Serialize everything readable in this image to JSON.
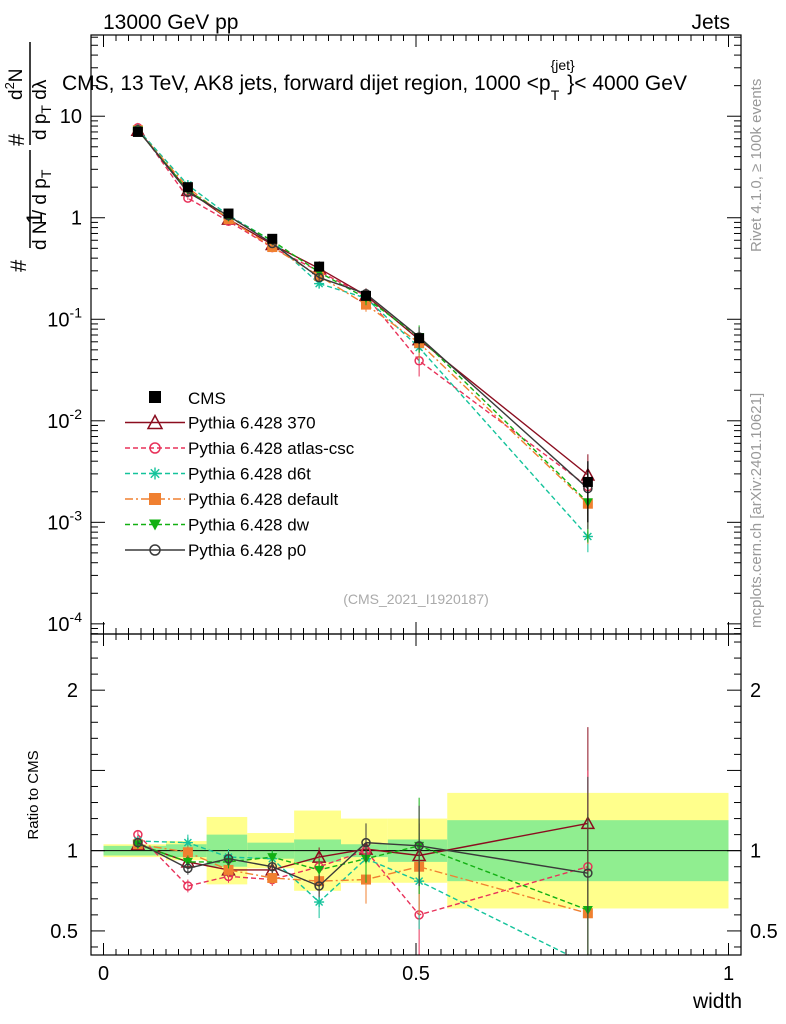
{
  "header": {
    "left": "13000 GeV pp",
    "right": "Jets"
  },
  "side": {
    "rivet": "Rivet 4.1.0, ≥ 100k events",
    "mcplots": "mcplots.cern.ch [arXiv:2401.10621]"
  },
  "chart_data": {
    "type": "line",
    "title": "CMS, 13 TeV, AK8 jets, forward dijet region, 1000 < p_T^{jet} < 4000 GeV",
    "title_parts": {
      "main": "CMS, 13 TeV, AK8 jets, forward dijet region, 1000 <p",
      "sup": "{jet}",
      "sub": "T",
      "tail": "}< 4000 GeV"
    },
    "ylabel_upper": "1/N dN/dp_T d²N/dp_T dλ",
    "ylabel_parts": {
      "frac1_num": "1",
      "frac1_den": "d N / d p",
      "frac1_den_sub": "T",
      "frac2_num": "d",
      "frac2_num_sup": "2",
      "frac2_num_tail": "N",
      "frac2_den": "d p",
      "frac2_den_sub": "T",
      "frac2_den_tail": " dλ",
      "hash": "#"
    },
    "ylabel_lower": "Ratio to CMS",
    "xlabel": "width",
    "analysis_id": "(CMS_2021_I1920187)",
    "xlim": [
      -0.02,
      1.02
    ],
    "ylim_upper_log": [
      -4.1,
      1.8
    ],
    "ylim_lower": [
      0.35,
      2.35
    ],
    "x_ticks": [
      0,
      0.5,
      1
    ],
    "x_tick_labels": [
      "0",
      "0.5",
      "1"
    ],
    "y_upper_ticks": [
      {
        "base": "10",
        "exp": "-4",
        "v": 0.0001
      },
      {
        "base": "10",
        "exp": "-3",
        "v": 0.001
      },
      {
        "base": "10",
        "exp": "-2",
        "v": 0.01
      },
      {
        "base": "10",
        "exp": "-1",
        "v": 0.1
      },
      {
        "base": "1",
        "exp": "",
        "v": 1
      },
      {
        "base": "10",
        "exp": "",
        "v": 10
      }
    ],
    "y_lower_ticks": [
      0.5,
      1,
      2
    ],
    "y_lower_tick_labels": [
      "0.5",
      "1",
      "2"
    ],
    "bin_edges": [
      0,
      0.1,
      0.165,
      0.23,
      0.305,
      0.38,
      0.455,
      0.55,
      1.0
    ],
    "x": [
      0.055,
      0.135,
      0.2,
      0.27,
      0.345,
      0.42,
      0.505,
      0.775
    ],
    "data": {
      "name": "CMS",
      "values": [
        7.0,
        2.0,
        1.1,
        0.62,
        0.33,
        0.17,
        0.065,
        0.0025
      ],
      "err_frac": [
        0.05,
        0.05,
        0.08,
        0.08,
        0.1,
        0.1,
        0.12,
        0.6
      ]
    },
    "bands": {
      "green": [
        0.03,
        0.04,
        0.1,
        0.05,
        0.07,
        0.04,
        0.07,
        0.19
      ],
      "yellow": [
        0.04,
        0.06,
        0.21,
        0.11,
        0.25,
        0.2,
        0.2,
        0.36
      ]
    },
    "series": [
      {
        "name": "Pythia 6.428 370",
        "color": "#8b0d1f",
        "dash": "",
        "marker": "triangle-open",
        "ratio": [
          1.04,
          0.93,
          0.88,
          0.88,
          0.96,
          1.01,
          0.97,
          1.17
        ],
        "err": [
          0.02,
          0.04,
          0.04,
          0.04,
          0.06,
          0.1,
          0.2,
          0.6
        ]
      },
      {
        "name": "Pythia 6.428 atlas-csc",
        "color": "#e8325a",
        "dash": "5,3",
        "marker": "circle-open",
        "ratio": [
          1.1,
          0.78,
          0.84,
          0.82,
          0.9,
          1.0,
          0.6,
          0.9
        ],
        "err": [
          0.02,
          0.04,
          0.04,
          0.04,
          0.06,
          0.15,
          0.3,
          0.6
        ]
      },
      {
        "name": "Pythia 6.428 d6t",
        "color": "#14c39b",
        "dash": "5,3",
        "marker": "star",
        "ratio": [
          1.06,
          1.05,
          0.96,
          0.95,
          0.68,
          0.95,
          0.81,
          0.29
        ],
        "err": [
          0.02,
          0.05,
          0.05,
          0.05,
          0.1,
          0.15,
          0.3,
          0.3
        ]
      },
      {
        "name": "Pythia 6.428 default",
        "color": "#f08030",
        "dash": "8,3,2,3",
        "marker": "square",
        "ratio": [
          1.04,
          0.99,
          0.88,
          0.83,
          0.81,
          0.82,
          0.9,
          0.61
        ],
        "err": [
          0.02,
          0.04,
          0.04,
          0.04,
          0.08,
          0.15,
          0.3,
          0.6
        ]
      },
      {
        "name": "Pythia 6.428 dw",
        "color": "#12b012",
        "dash": "5,3",
        "marker": "triangle-down",
        "ratio": [
          1.04,
          0.93,
          0.93,
          0.96,
          0.88,
          0.95,
          1.03,
          0.63
        ],
        "err": [
          0.02,
          0.04,
          0.04,
          0.04,
          0.07,
          0.15,
          0.3,
          0.6
        ]
      },
      {
        "name": "Pythia 6.428 p0",
        "color": "#3a3a3a",
        "dash": "",
        "marker": "circle-open",
        "ratio": [
          1.05,
          0.89,
          0.95,
          0.9,
          0.78,
          1.05,
          1.03,
          0.86
        ],
        "err": [
          0.02,
          0.04,
          0.04,
          0.04,
          0.07,
          0.12,
          0.25,
          0.6
        ]
      }
    ]
  }
}
